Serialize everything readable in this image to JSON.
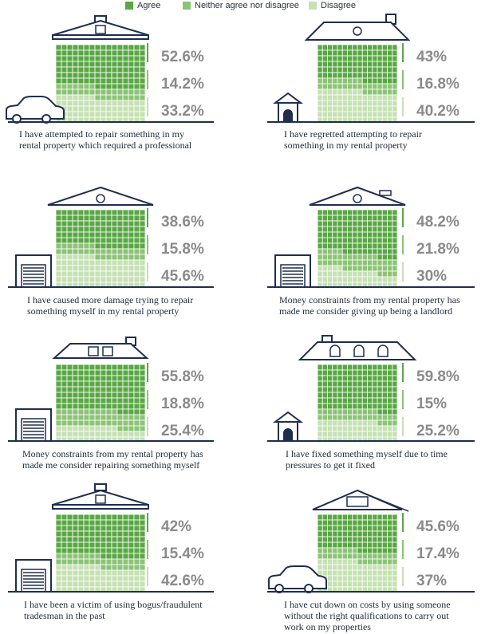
{
  "colors": {
    "agree": "#5aa845",
    "neither": "#8cc476",
    "disagree": "#c6e1b4",
    "navy": "#1f2e4f"
  },
  "legend": [
    {
      "label": "Agree",
      "color": "#5aa845"
    },
    {
      "label": "Neither agree nor disagree",
      "color": "#8cc476"
    },
    {
      "label": "Disagree",
      "color": "#c6e1b4"
    }
  ],
  "chart_data": {
    "type": "bar",
    "series_names": [
      "Agree",
      "Neither agree nor disagree",
      "Disagree"
    ],
    "panels": [
      {
        "caption": [
          "I have attempted to repair something in my",
          "rental property which required a professional"
        ],
        "values": [
          52.6,
          14.2,
          33.2
        ],
        "labels": [
          "52.6%",
          "14.2%",
          "33.2%"
        ]
      },
      {
        "caption": [
          "I have regretted attempting to repair",
          "something in my rental property"
        ],
        "values": [
          43,
          16.8,
          40.2
        ],
        "labels": [
          "43%",
          "16.8%",
          "40.2%"
        ]
      },
      {
        "caption": [
          "I have caused more damage trying to repair",
          "something myself in my rental property"
        ],
        "values": [
          38.6,
          15.8,
          45.6
        ],
        "labels": [
          "38.6%",
          "15.8%",
          "45.6%"
        ]
      },
      {
        "caption": [
          "Money constraints from my rental property has",
          "made me consider giving up being a landlord"
        ],
        "values": [
          48.2,
          21.8,
          30
        ],
        "labels": [
          "48.2%",
          "21.8%",
          "30%"
        ]
      },
      {
        "caption": [
          "Money constraints from my rental property has",
          "made me consider repairing something myself"
        ],
        "values": [
          55.8,
          18.8,
          25.4
        ],
        "labels": [
          "55.8%",
          "18.8%",
          "25.4%"
        ]
      },
      {
        "caption": [
          "I have fixed something myself due to time",
          "pressures to get it fixed"
        ],
        "values": [
          59.8,
          15,
          25.2
        ],
        "labels": [
          "59.8%",
          "15%",
          "25.2%"
        ]
      },
      {
        "caption": [
          "I have been a victim of using bogus/fraudulent",
          "tradesman in the past"
        ],
        "values": [
          42,
          15.4,
          42.6
        ],
        "labels": [
          "42%",
          "15.4%",
          "42.6%"
        ]
      },
      {
        "caption": [
          "I have cut down on costs by using someone",
          "without the right qualifications to carry out",
          "work on my properties"
        ],
        "values": [
          45.6,
          17.4,
          37
        ],
        "labels": [
          "45.6%",
          "17.4%",
          "37%"
        ]
      }
    ]
  }
}
